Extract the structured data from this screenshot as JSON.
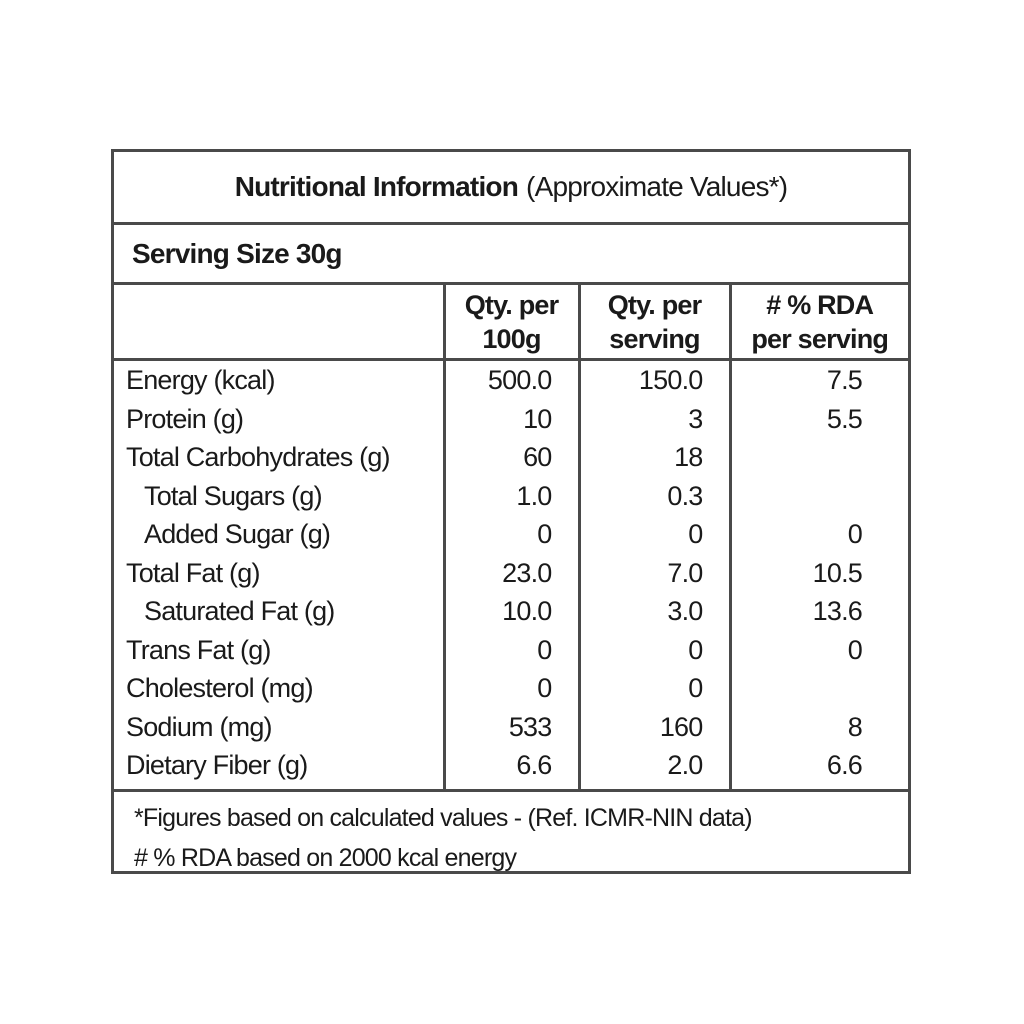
{
  "header": {
    "title": "Nutritional Information",
    "subtitle": "(Approximate Values*)"
  },
  "serving_size": "Serving Size 30g",
  "table": {
    "columns": [
      "Qty. per\n100g",
      "Qty. per\nserving",
      "# % RDA\nper serving"
    ],
    "rows": [
      {
        "label": "Energy (kcal)",
        "per_100g": "500.0",
        "per_serving": "150.0",
        "rda": "7.5"
      },
      {
        "label": "Protein (g)",
        "per_100g": "10",
        "per_serving": "3",
        "rda": "5.5"
      },
      {
        "label": "Total Carbohydrates (g)",
        "per_100g": "60",
        "per_serving": "18"
      },
      {
        "label": "Total Sugars (g)",
        "per_100g": "1.0",
        "per_serving": "0.3"
      },
      {
        "label": "Added Sugar (g)",
        "per_100g": "0",
        "per_serving": "0",
        "rda": "0"
      },
      {
        "label": "Total Fat (g)",
        "per_100g": "23.0",
        "per_serving": "7.0",
        "rda": "10.5"
      },
      {
        "label": "Saturated Fat (g)",
        "per_100g": "10.0",
        "per_serving": "3.0",
        "rda": "13.6"
      },
      {
        "label": "Trans Fat (g)",
        "per_100g": "0",
        "per_serving": "0",
        "rda": "0"
      },
      {
        "label": "Cholesterol (mg)",
        "per_100g": "0",
        "per_serving": "0"
      },
      {
        "label": "Sodium (mg)",
        "per_100g": "533",
        "per_serving": "160",
        "rda": "8"
      },
      {
        "label": "Dietary Fiber (g)",
        "per_100g": "6.6",
        "per_serving": "2.0",
        "rda": "6.6"
      }
    ]
  },
  "footnotes": [
    "*Figures based on calculated values - (Ref. ICMR-NIN data)",
    "# % RDA based on 2000 kcal energy"
  ]
}
